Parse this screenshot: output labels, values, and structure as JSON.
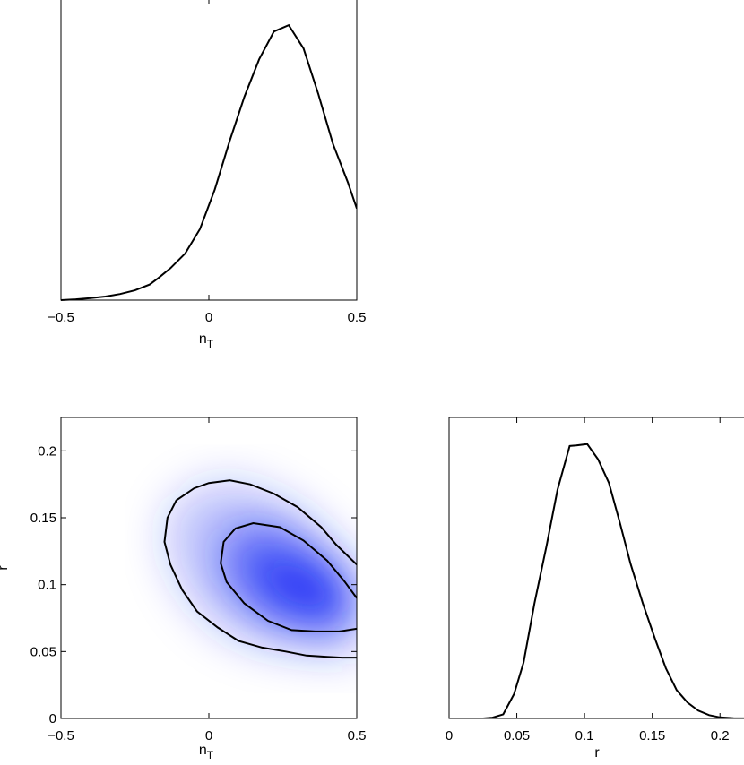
{
  "chart_data": [
    {
      "id": "nT-marginal",
      "type": "line",
      "xlabel": "n",
      "xlabel_sub": "T",
      "ylabel": "",
      "xlim": [
        -0.5,
        0.5
      ],
      "xticks": [
        -0.5,
        0,
        0.5
      ],
      "xtick_labels": [
        "−0.5",
        "0",
        "0.5"
      ],
      "yticks": [],
      "series": [
        {
          "x": [
            -0.5,
            -0.45,
            -0.4,
            -0.35,
            -0.3,
            -0.25,
            -0.2,
            -0.17,
            -0.13,
            -0.08,
            -0.03,
            0.02,
            0.07,
            0.12,
            0.17,
            0.22,
            0.27,
            0.32,
            0.37,
            0.42,
            0.47,
            0.5
          ],
          "y": [
            0.0,
            0.003,
            0.007,
            0.013,
            0.022,
            0.035,
            0.056,
            0.08,
            0.115,
            0.168,
            0.256,
            0.398,
            0.572,
            0.732,
            0.867,
            0.967,
            0.99,
            0.906,
            0.742,
            0.561,
            0.424,
            0.33
          ]
        }
      ]
    },
    {
      "id": "r-nT-joint",
      "type": "contour",
      "xlabel": "n",
      "xlabel_sub": "T",
      "ylabel": "r",
      "xlim": [
        -0.5,
        0.5
      ],
      "ylim": [
        0,
        0.225
      ],
      "xticks": [
        -0.5,
        0,
        0.5
      ],
      "xtick_labels": [
        "−0.5",
        "0",
        "0.5"
      ],
      "yticks": [
        0,
        0.05,
        0.1,
        0.15,
        0.2
      ],
      "ytick_labels": [
        "0",
        "0.05",
        "0.1",
        "0.15",
        "0.2"
      ],
      "density_color": "#1e2ef5",
      "density_peak": {
        "x": 0.33,
        "y": 0.098
      },
      "contours": [
        {
          "level": "outer",
          "x": [
            0.5,
            0.43,
            0.38,
            0.3,
            0.22,
            0.14,
            0.07,
            0.0,
            -0.05,
            -0.11,
            -0.14,
            -0.15,
            -0.13,
            -0.09,
            -0.04,
            0.03,
            0.1,
            0.18,
            0.26,
            0.33,
            0.4,
            0.45,
            0.5
          ],
          "y": [
            0.115,
            0.13,
            0.143,
            0.158,
            0.168,
            0.175,
            0.178,
            0.176,
            0.172,
            0.163,
            0.15,
            0.132,
            0.115,
            0.096,
            0.08,
            0.068,
            0.058,
            0.053,
            0.05,
            0.047,
            0.046,
            0.0455,
            0.0455
          ]
        },
        {
          "level": "inner",
          "x": [
            0.5,
            0.46,
            0.4,
            0.32,
            0.24,
            0.15,
            0.09,
            0.05,
            0.04,
            0.06,
            0.12,
            0.2,
            0.28,
            0.36,
            0.44,
            0.5
          ],
          "y": [
            0.09,
            0.102,
            0.118,
            0.133,
            0.143,
            0.146,
            0.142,
            0.132,
            0.116,
            0.102,
            0.086,
            0.073,
            0.066,
            0.065,
            0.065,
            0.067
          ]
        }
      ]
    },
    {
      "id": "r-marginal",
      "type": "line",
      "xlabel": "r",
      "ylabel": "",
      "xlim": [
        0,
        0.225
      ],
      "xticks": [
        0,
        0.05,
        0.1,
        0.15,
        0.2
      ],
      "xtick_labels": [
        "0",
        "0.05",
        "0.1",
        "0.15",
        "0.2"
      ],
      "yticks": [],
      "series": [
        {
          "x": [
            0.0,
            0.015,
            0.025,
            0.032,
            0.04,
            0.048,
            0.055,
            0.063,
            0.072,
            0.08,
            0.089,
            0.094,
            0.102,
            0.11,
            0.118,
            0.126,
            0.134,
            0.143,
            0.152,
            0.16,
            0.168,
            0.176,
            0.184,
            0.192,
            0.2,
            0.21,
            0.225
          ],
          "y": [
            0.0,
            0.0,
            0.0,
            0.003,
            0.015,
            0.088,
            0.201,
            0.414,
            0.623,
            0.823,
            0.981,
            0.983,
            0.988,
            0.933,
            0.848,
            0.706,
            0.556,
            0.415,
            0.287,
            0.181,
            0.102,
            0.057,
            0.028,
            0.012,
            0.004,
            0.001,
            0.0
          ]
        }
      ]
    }
  ]
}
